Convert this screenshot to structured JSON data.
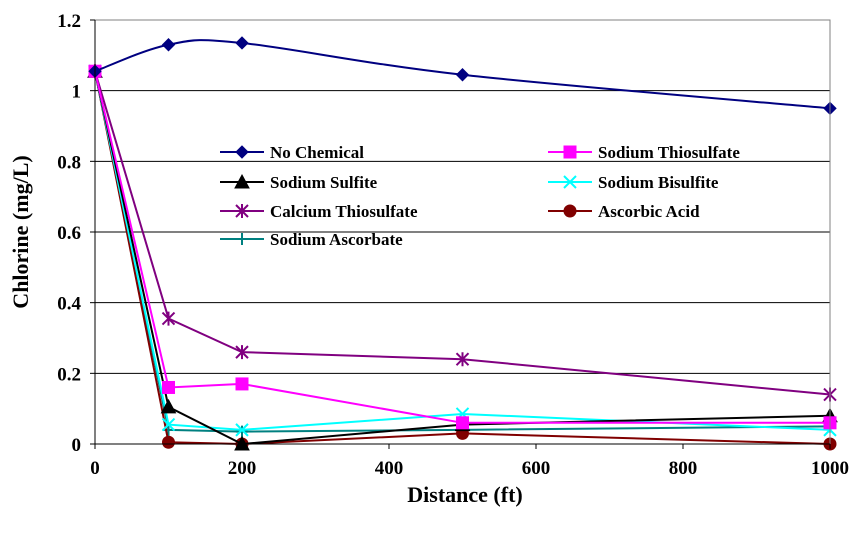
{
  "chart_data": {
    "type": "line",
    "title": "",
    "xlabel": "Distance (ft)",
    "ylabel": "Chlorine (mg/L)",
    "xlim": [
      0,
      1000
    ],
    "ylim": [
      0,
      1.2
    ],
    "xticks": [
      0,
      200,
      400,
      600,
      800,
      1000
    ],
    "yticks": [
      0,
      0.2,
      0.4,
      0.6,
      0.8,
      1,
      1.2
    ],
    "ytick_labels": [
      "0",
      "0.2",
      "0.4",
      "0.6",
      "0.8",
      "1",
      "1.2"
    ],
    "grid": "horizontal",
    "legend_position": "inside-center",
    "series": [
      {
        "name": "No Chemical",
        "color": "#000080",
        "marker": "diamond",
        "smooth": true,
        "points": [
          [
            0,
            1.055
          ],
          [
            100,
            1.13
          ],
          [
            200,
            1.135
          ],
          [
            500,
            1.045
          ],
          [
            1000,
            0.95
          ]
        ]
      },
      {
        "name": "Sodium Thiosulfate",
        "color": "#FF00FF",
        "marker": "square",
        "points": [
          [
            0,
            1.055
          ],
          [
            100,
            0.16
          ],
          [
            200,
            0.17
          ],
          [
            500,
            0.06
          ],
          [
            1000,
            0.06
          ]
        ]
      },
      {
        "name": "Sodium Sulfite",
        "color": "#000000",
        "marker": "triangle",
        "points": [
          [
            0,
            1.055
          ],
          [
            100,
            0.105
          ],
          [
            200,
            0.0
          ],
          [
            500,
            0.055
          ],
          [
            1000,
            0.08
          ]
        ]
      },
      {
        "name": "Sodium Bisulfite",
        "color": "#00FFFF",
        "marker": "x",
        "points": [
          [
            0,
            1.055
          ],
          [
            100,
            0.055
          ],
          [
            200,
            0.04
          ],
          [
            500,
            0.085
          ],
          [
            1000,
            0.04
          ]
        ]
      },
      {
        "name": "Calcium Thiosulfate",
        "color": "#800080",
        "marker": "asterisk",
        "points": [
          [
            0,
            1.055
          ],
          [
            100,
            0.355
          ],
          [
            200,
            0.26
          ],
          [
            500,
            0.24
          ],
          [
            1000,
            0.14
          ]
        ]
      },
      {
        "name": "Ascorbic Acid",
        "color": "#800000",
        "marker": "circle",
        "points": [
          [
            0,
            1.055
          ],
          [
            100,
            0.005
          ],
          [
            200,
            0.0
          ],
          [
            500,
            0.03
          ],
          [
            1000,
            0.0
          ]
        ]
      },
      {
        "name": "Sodium Ascorbate",
        "color": "#008080",
        "marker": "plus",
        "points": [
          [
            0,
            1.055
          ],
          [
            100,
            0.04
          ],
          [
            200,
            0.035
          ],
          [
            500,
            0.04
          ],
          [
            1000,
            0.05
          ]
        ]
      }
    ]
  }
}
